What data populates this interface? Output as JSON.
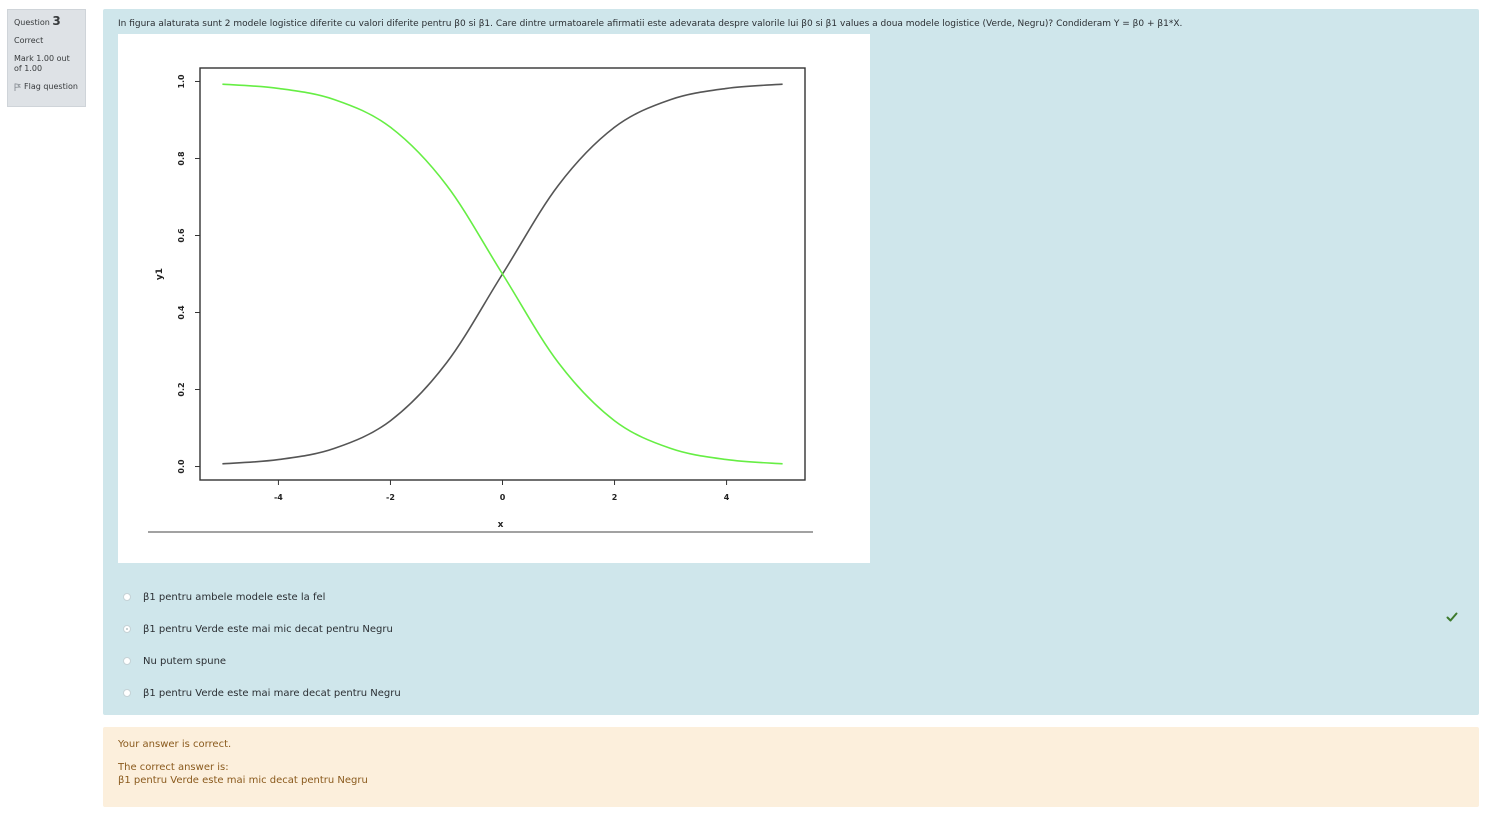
{
  "info": {
    "question_label": "Question",
    "question_number": "3",
    "state": "Correct",
    "grade_line1": "Mark 1.00 out",
    "grade_line2": "of 1.00",
    "flag_label": "Flag question"
  },
  "question": {
    "text": "In figura alaturata sunt 2 modele logistice diferite cu valori diferite pentru β0 si β1. Care dintre urmatoarele afirmatii este adevarata despre valorile lui β0 si β1 values a doua modele logistice (Verde, Negru)? Condideram Y = β0 + β1*X."
  },
  "chart_data": {
    "type": "line",
    "xlabel": "x",
    "ylabel": "y1",
    "xlim": [
      -5.4,
      5.4
    ],
    "ylim": [
      -0.035,
      1.035
    ],
    "x_ticks": [
      "-4",
      "-2",
      "0",
      "2",
      "4"
    ],
    "y_ticks": [
      "0.0",
      "0.2",
      "0.4",
      "0.6",
      "0.8",
      "1.0"
    ],
    "series": [
      {
        "color": "#555555",
        "x": [
          -5,
          -4,
          -3,
          -2,
          -1,
          0,
          1,
          2,
          3,
          4,
          5
        ],
        "y": [
          0.007,
          0.018,
          0.047,
          0.119,
          0.269,
          0.5,
          0.731,
          0.881,
          0.953,
          0.982,
          0.993
        ]
      },
      {
        "color": "#66ee44",
        "x": [
          -5,
          -4,
          -3,
          -2,
          -1,
          0,
          1,
          2,
          3,
          4,
          5
        ],
        "y": [
          0.993,
          0.982,
          0.953,
          0.881,
          0.731,
          0.5,
          0.269,
          0.119,
          0.047,
          0.018,
          0.007
        ]
      }
    ],
    "grid": false
  },
  "answers": [
    {
      "label": "β1 pentru ambele modele este la fel",
      "checked": false
    },
    {
      "label": "β1 pentru Verde este mai mic decat pentru Negru",
      "checked": true
    },
    {
      "label": "Nu putem spune",
      "checked": false
    },
    {
      "label": "β1 pentru Verde este mai mare decat pentru Negru",
      "checked": false
    }
  ],
  "outcome": {
    "feedback": "Your answer is correct.",
    "right_answer_label": "The correct answer is:",
    "right_answer": "β1 pentru Verde este mai mic decat pentru Negru"
  },
  "colors": {
    "formulation_bg": "#cfe6eb",
    "outcome_bg": "#fcefdc",
    "correct_check": "#3d7a2c"
  }
}
